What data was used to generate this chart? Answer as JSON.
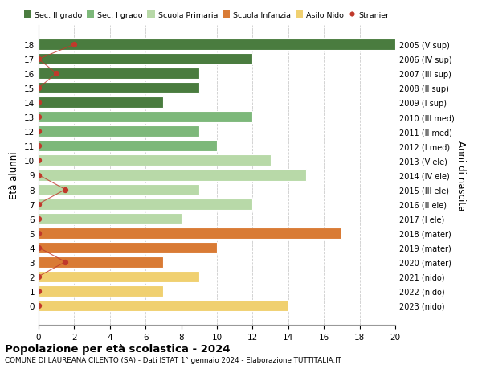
{
  "ages": [
    18,
    17,
    16,
    15,
    14,
    13,
    12,
    11,
    10,
    9,
    8,
    7,
    6,
    5,
    4,
    3,
    2,
    1,
    0
  ],
  "right_labels": [
    "2005 (V sup)",
    "2006 (IV sup)",
    "2007 (III sup)",
    "2008 (II sup)",
    "2009 (I sup)",
    "2010 (III med)",
    "2011 (II med)",
    "2012 (I med)",
    "2013 (V ele)",
    "2014 (IV ele)",
    "2015 (III ele)",
    "2016 (II ele)",
    "2017 (I ele)",
    "2018 (mater)",
    "2019 (mater)",
    "2020 (mater)",
    "2021 (nido)",
    "2022 (nido)",
    "2023 (nido)"
  ],
  "bar_values": [
    20,
    12,
    9,
    9,
    7,
    12,
    9,
    10,
    13,
    15,
    9,
    12,
    8,
    17,
    10,
    7,
    9,
    7,
    14
  ],
  "bar_colors": [
    "#4a7c3f",
    "#4a7c3f",
    "#4a7c3f",
    "#4a7c3f",
    "#4a7c3f",
    "#7db87a",
    "#7db87a",
    "#7db87a",
    "#b8d9a8",
    "#b8d9a8",
    "#b8d9a8",
    "#b8d9a8",
    "#b8d9a8",
    "#d97b35",
    "#d97b35",
    "#d97b35",
    "#f0d070",
    "#f0d070",
    "#f0d070"
  ],
  "stranieri_x": [
    2,
    0,
    1,
    0,
    0,
    0,
    0,
    0,
    0,
    0,
    1.5,
    0,
    0,
    0,
    0,
    1.5,
    0,
    0,
    0
  ],
  "legend_labels": [
    "Sec. II grado",
    "Sec. I grado",
    "Scuola Primaria",
    "Scuola Infanzia",
    "Asilo Nido",
    "Stranieri"
  ],
  "legend_colors": [
    "#4a7c3f",
    "#7db87a",
    "#b8d9a8",
    "#d97b35",
    "#f0d070",
    "#c0392b"
  ],
  "ylabel": "Età alunni",
  "ylabel2": "Anni di nascita",
  "title": "Popolazione per età scolastica - 2024",
  "subtitle": "COMUNE DI LAUREANA CILENTO (SA) - Dati ISTAT 1° gennaio 2024 - Elaborazione TUTTITALIA.IT",
  "xlim": [
    0,
    20
  ],
  "xticks": [
    0,
    2,
    4,
    6,
    8,
    10,
    12,
    14,
    16,
    18,
    20
  ],
  "stranieri_color": "#c0392b",
  "bg_color": "#ffffff",
  "grid_color": "#cccccc",
  "bar_height": 0.78
}
